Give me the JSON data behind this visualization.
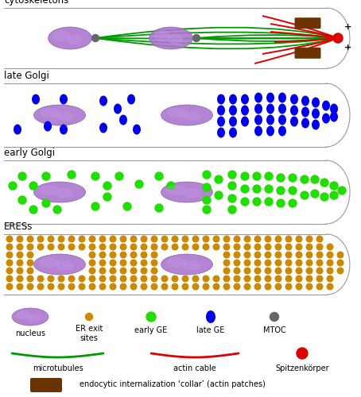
{
  "panel_labels": [
    "cytoskeletons",
    "late Golgi",
    "early Golgi",
    "ERESs"
  ],
  "bg_color": "#ffffff",
  "nucleus_color": "#aa77cc",
  "nucleus_edge": "#8855aa",
  "mtoc_color": "#666666",
  "early_ge_color": "#22dd00",
  "late_ge_color": "#0000ee",
  "eres_color": "#cc8800",
  "actin_color": "#dd0000",
  "mt_color": "#009900",
  "endocytic_color": "#6b3300",
  "spitz_color": "#dd0000",
  "label_fontsize": 8
}
